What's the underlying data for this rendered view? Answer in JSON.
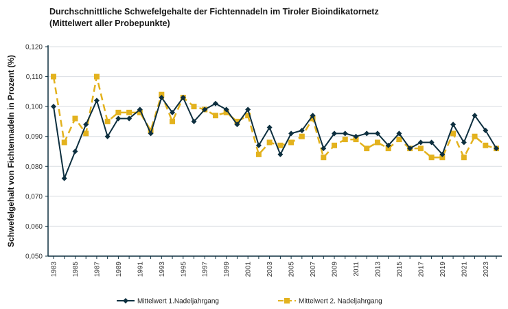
{
  "chart_data": {
    "type": "line",
    "title_line1": "Durchschnittliche Schwefelgehalte der Fichtennadeln im Tiroler Bioindikatornetz",
    "title_line2": "(Mittelwert aller Probepunkte)",
    "ylabel": "Schwefelgehalt von Fichtennadeln in Prozent (%)",
    "xlabel": "",
    "ylim": [
      0.05,
      0.12
    ],
    "yticks": [
      "0,050",
      "0,060",
      "0,070",
      "0,080",
      "0,090",
      "0,100",
      "0,110",
      "0,120"
    ],
    "grid": true,
    "legend_position": "bottom",
    "x": [
      1983,
      1984,
      1985,
      1986,
      1987,
      1988,
      1989,
      1990,
      1991,
      1992,
      1993,
      1994,
      1995,
      1996,
      1997,
      1998,
      1999,
      2000,
      2001,
      2002,
      2003,
      2004,
      2005,
      2006,
      2007,
      2008,
      2009,
      2010,
      2011,
      2012,
      2013,
      2014,
      2015,
      2016,
      2017,
      2018,
      2019,
      2020,
      2021,
      2022,
      2023,
      2024
    ],
    "xtick_labels": [
      "1983",
      "1985",
      "1987",
      "1989",
      "1991",
      "1993",
      "1995",
      "1997",
      "1999",
      "2001",
      "2003",
      "2005",
      "2007",
      "2009",
      "2011",
      "2013",
      "2015",
      "2017",
      "2019",
      "2021",
      "2023"
    ],
    "series": [
      {
        "name": "Mittelwert 1.Nadeljahrgang",
        "color": "#0d2f3f",
        "marker": "diamond",
        "style": "solid",
        "values": [
          0.1,
          0.076,
          0.085,
          0.094,
          0.102,
          0.09,
          0.096,
          0.096,
          0.099,
          0.091,
          0.103,
          0.098,
          0.103,
          0.095,
          0.099,
          0.101,
          0.099,
          0.094,
          0.099,
          0.087,
          0.093,
          0.084,
          0.091,
          0.092,
          0.097,
          0.086,
          0.091,
          0.091,
          0.09,
          0.091,
          0.091,
          0.087,
          0.091,
          0.086,
          0.088,
          0.088,
          0.084,
          0.094,
          0.088,
          0.097,
          0.092,
          0.086
        ]
      },
      {
        "name": "Mittelwert 2. Nadeljahrgang",
        "color": "#e3b21e",
        "marker": "square",
        "style": "dashed",
        "values": [
          0.11,
          0.088,
          0.096,
          0.091,
          0.11,
          0.095,
          0.098,
          0.098,
          0.098,
          0.092,
          0.104,
          0.095,
          0.103,
          0.1,
          0.099,
          0.097,
          0.098,
          0.095,
          0.097,
          0.084,
          0.088,
          0.087,
          0.088,
          0.09,
          0.096,
          0.083,
          0.087,
          0.089,
          0.089,
          0.086,
          0.088,
          0.086,
          0.089,
          0.086,
          0.086,
          0.083,
          0.083,
          0.091,
          0.083,
          0.09,
          0.087,
          0.086
        ]
      }
    ]
  }
}
